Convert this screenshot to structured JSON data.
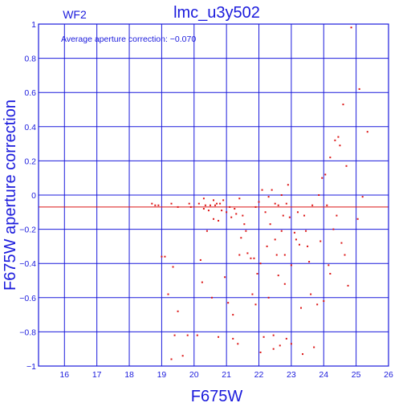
{
  "chart_data": {
    "type": "scatter",
    "title": "lmc_u3y502",
    "panel_label": "WF2",
    "annotation": "Average aperture correction: −0.070",
    "xlabel": "F675W",
    "ylabel": "F675W aperture correction",
    "xlim": [
      15.2,
      26
    ],
    "ylim": [
      -1,
      1
    ],
    "xticks": [
      16,
      17,
      18,
      19,
      20,
      21,
      22,
      23,
      24,
      25,
      26
    ],
    "yticks": [
      -1,
      -0.8,
      -0.6,
      -0.4,
      -0.2,
      0,
      0.2,
      0.4,
      0.6,
      0.8,
      1
    ],
    "xtick_labels": [
      "16",
      "17",
      "18",
      "19",
      "20",
      "21",
      "22",
      "23",
      "24",
      "25",
      "26"
    ],
    "ytick_labels": [
      "−1",
      "−0.8",
      "−0.6",
      "−0.4",
      "−0.2",
      "0",
      "0.2",
      "0.4",
      "0.6",
      "0.8",
      "1"
    ],
    "reference_line": {
      "y": -0.07,
      "color": "#dc1414"
    },
    "grid": true,
    "colors": {
      "axes": "#1a1adc",
      "points": "#dc1414"
    },
    "series": [
      {
        "points": [
          [
            18.7,
            -0.05
          ],
          [
            18.8,
            -0.06
          ],
          [
            18.9,
            -0.06
          ],
          [
            19.0,
            -0.36
          ],
          [
            19.1,
            -0.36
          ],
          [
            19.2,
            -0.58
          ],
          [
            19.3,
            -0.05
          ],
          [
            19.3,
            -0.96
          ],
          [
            19.35,
            -0.42
          ],
          [
            19.4,
            -0.82
          ],
          [
            19.5,
            -0.07
          ],
          [
            19.5,
            -0.68
          ],
          [
            19.65,
            -0.94
          ],
          [
            19.8,
            -0.82
          ],
          [
            19.85,
            -0.05
          ],
          [
            19.9,
            -0.07
          ],
          [
            20.1,
            -0.82
          ],
          [
            20.15,
            -0.05
          ],
          [
            20.2,
            -0.38
          ],
          [
            20.25,
            -0.51
          ],
          [
            20.3,
            -0.02
          ],
          [
            20.3,
            -0.08
          ],
          [
            20.35,
            -0.06
          ],
          [
            20.4,
            -0.21
          ],
          [
            20.45,
            -0.09
          ],
          [
            20.5,
            -0.06
          ],
          [
            20.55,
            -0.6
          ],
          [
            20.6,
            -0.03
          ],
          [
            20.6,
            -0.14
          ],
          [
            20.65,
            -0.06
          ],
          [
            20.7,
            -0.05
          ],
          [
            20.75,
            -0.15
          ],
          [
            20.75,
            -0.83
          ],
          [
            20.8,
            -0.05
          ],
          [
            20.85,
            -0.09
          ],
          [
            20.9,
            -0.03
          ],
          [
            20.95,
            -0.48
          ],
          [
            21.0,
            -0.1
          ],
          [
            21.05,
            -0.63
          ],
          [
            21.1,
            -0.07
          ],
          [
            21.15,
            -0.13
          ],
          [
            21.2,
            -0.7
          ],
          [
            21.2,
            -0.84
          ],
          [
            21.25,
            -0.08
          ],
          [
            21.3,
            -0.11
          ],
          [
            21.35,
            -0.87
          ],
          [
            21.4,
            -0.02
          ],
          [
            21.4,
            -0.35
          ],
          [
            21.45,
            -0.25
          ],
          [
            21.5,
            -0.12
          ],
          [
            21.55,
            -0.17
          ],
          [
            21.6,
            -0.21
          ],
          [
            21.65,
            -0.34
          ],
          [
            21.75,
            -0.37
          ],
          [
            21.8,
            -0.58
          ],
          [
            21.85,
            -0.37
          ],
          [
            21.9,
            -0.07
          ],
          [
            21.9,
            -0.64
          ],
          [
            21.95,
            -0.46
          ],
          [
            22.0,
            -0.04
          ],
          [
            22.05,
            -0.4
          ],
          [
            22.05,
            -0.92
          ],
          [
            22.1,
            0.03
          ],
          [
            22.15,
            -0.83
          ],
          [
            22.2,
            -0.1
          ],
          [
            22.25,
            -0.3
          ],
          [
            22.3,
            -0.01
          ],
          [
            22.3,
            -0.6
          ],
          [
            22.35,
            -0.17
          ],
          [
            22.4,
            0.03
          ],
          [
            22.45,
            -0.82
          ],
          [
            22.45,
            -0.9
          ],
          [
            22.5,
            -0.05
          ],
          [
            22.5,
            -0.26
          ],
          [
            22.55,
            -0.35
          ],
          [
            22.6,
            -0.06
          ],
          [
            22.6,
            -0.47
          ],
          [
            22.65,
            -0.88
          ],
          [
            22.7,
            0.0
          ],
          [
            22.7,
            -0.21
          ],
          [
            22.75,
            -0.12
          ],
          [
            22.8,
            -0.35
          ],
          [
            22.8,
            -0.52
          ],
          [
            22.85,
            -0.05
          ],
          [
            22.85,
            -0.84
          ],
          [
            22.9,
            0.06
          ],
          [
            22.95,
            -0.13
          ],
          [
            23.0,
            -0.41
          ],
          [
            23.0,
            -0.87
          ],
          [
            23.1,
            -0.22
          ],
          [
            23.15,
            -0.26
          ],
          [
            23.2,
            -0.1
          ],
          [
            23.25,
            -0.29
          ],
          [
            23.3,
            -0.66
          ],
          [
            23.35,
            -0.93
          ],
          [
            23.4,
            -0.12
          ],
          [
            23.45,
            -0.21
          ],
          [
            23.5,
            -0.3
          ],
          [
            23.55,
            -0.39
          ],
          [
            23.6,
            -0.58
          ],
          [
            23.65,
            -0.06
          ],
          [
            23.7,
            -0.89
          ],
          [
            23.8,
            -0.64
          ],
          [
            23.85,
            0.0
          ],
          [
            23.9,
            -0.27
          ],
          [
            23.95,
            0.1
          ],
          [
            24.0,
            -0.62
          ],
          [
            24.05,
            0.12
          ],
          [
            24.1,
            -0.06
          ],
          [
            24.15,
            -0.41
          ],
          [
            24.2,
            0.22
          ],
          [
            24.2,
            -0.46
          ],
          [
            24.3,
            -0.2
          ],
          [
            24.35,
            0.32
          ],
          [
            24.4,
            -0.12
          ],
          [
            24.45,
            0.34
          ],
          [
            24.5,
            0.29
          ],
          [
            24.55,
            -0.28
          ],
          [
            24.6,
            0.53
          ],
          [
            24.65,
            -0.35
          ],
          [
            24.7,
            0.17
          ],
          [
            24.75,
            -0.53
          ],
          [
            24.85,
            0.98
          ],
          [
            25.05,
            -0.14
          ],
          [
            25.1,
            0.62
          ],
          [
            25.2,
            -0.01
          ],
          [
            25.35,
            0.37
          ]
        ]
      }
    ]
  }
}
